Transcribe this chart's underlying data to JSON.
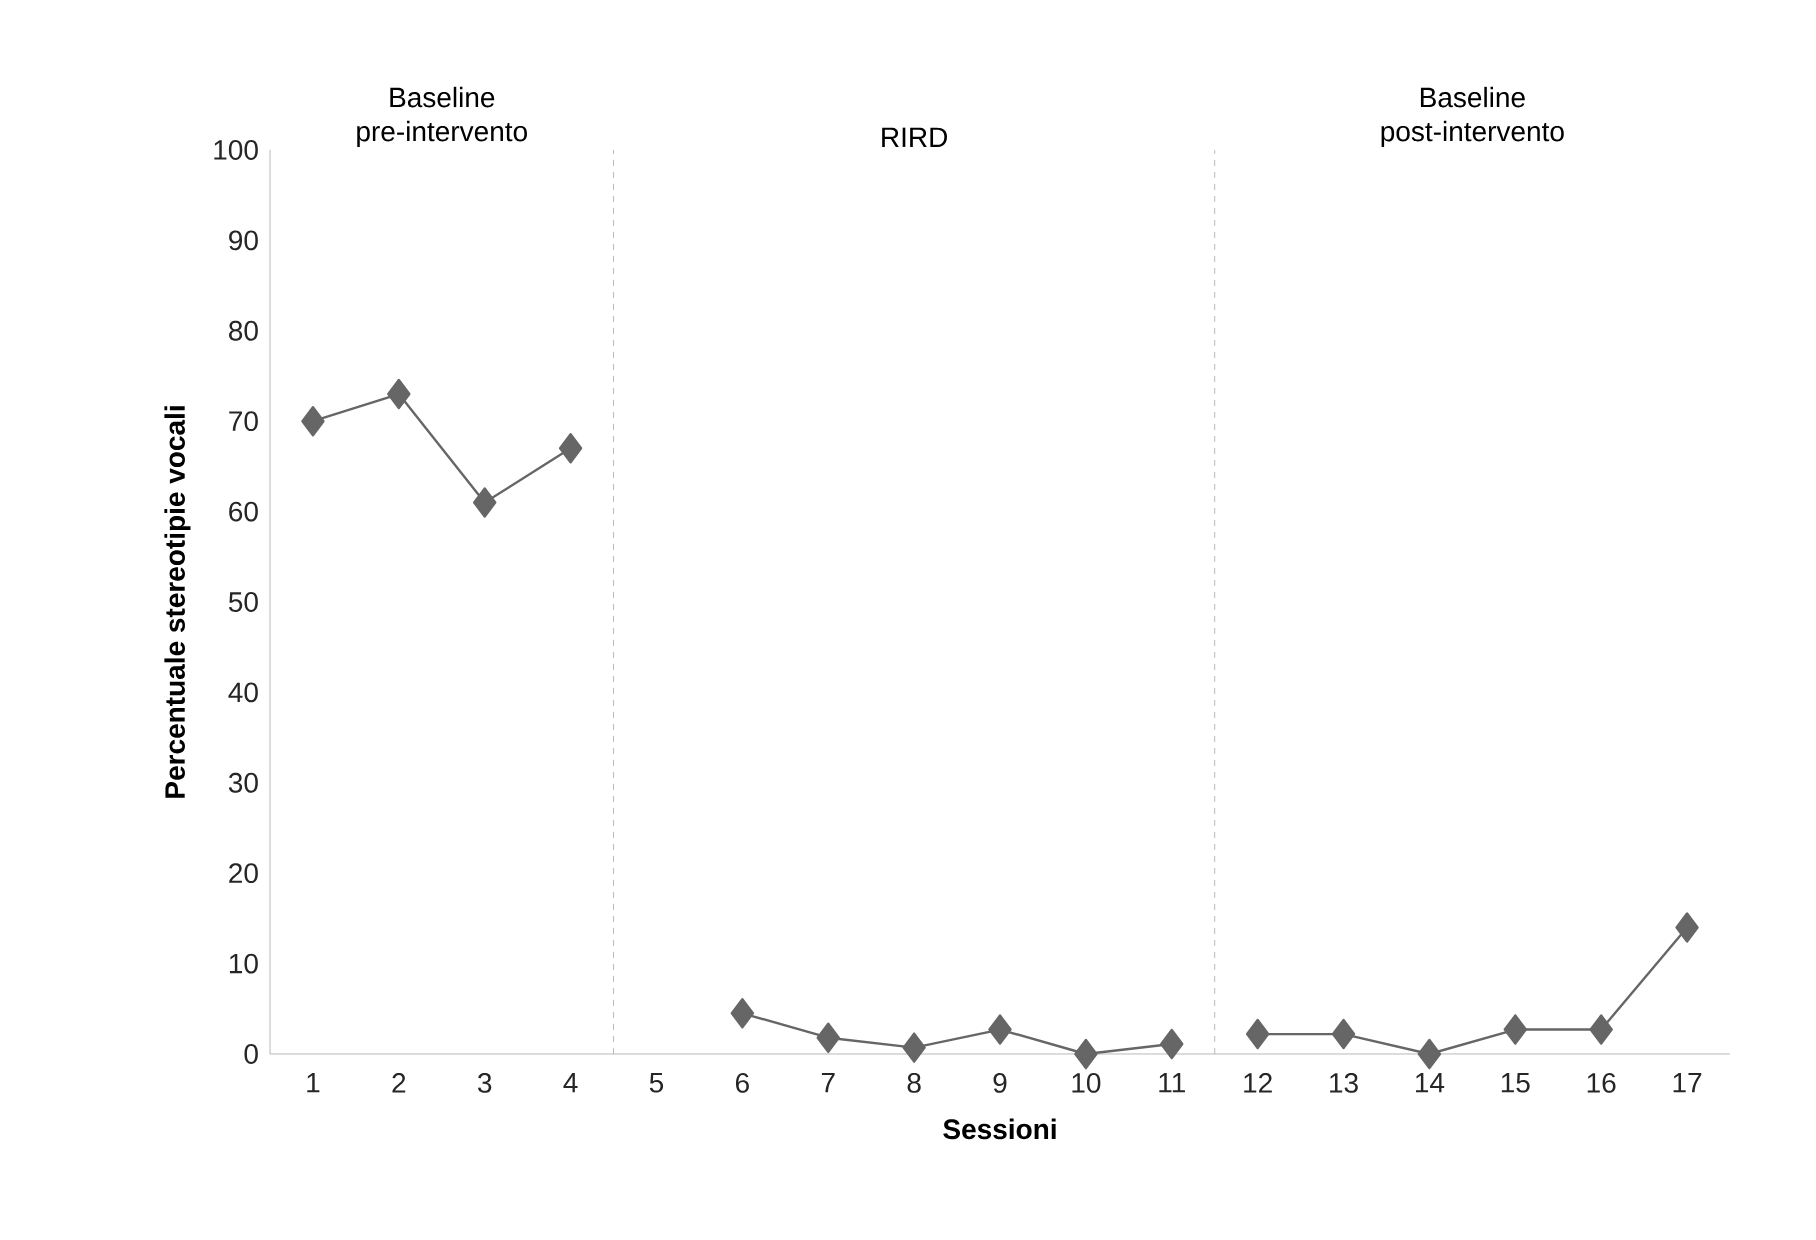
{
  "chart_data": {
    "type": "line",
    "xlabel": "Sessioni",
    "ylabel": "Percentuale stereotipie vocali",
    "series": [
      {
        "color": "#666666",
        "x": [
          1,
          2,
          3,
          4
        ],
        "values": [
          70,
          73,
          61,
          67
        ]
      },
      {
        "color": "#666666",
        "x": [
          6,
          7,
          8,
          9,
          10,
          11
        ],
        "values": [
          4.5,
          1.8,
          0.7,
          2.7,
          0,
          1.1
        ]
      },
      {
        "color": "#666666",
        "x": [
          12,
          13,
          14,
          15,
          16,
          17
        ],
        "values": [
          2.2,
          2.2,
          0,
          2.7,
          2.7,
          14
        ]
      }
    ],
    "xlim": [
      0.5,
      17.5
    ],
    "xticks": [
      1,
      2,
      3,
      4,
      5,
      6,
      7,
      8,
      9,
      10,
      11,
      12,
      13,
      14,
      15,
      16,
      17
    ],
    "ylim": [
      0,
      100
    ],
    "yticks": [
      0,
      10,
      20,
      30,
      40,
      50,
      60,
      70,
      80,
      90,
      100
    ],
    "ref_lines": [
      {
        "axis": "x",
        "value": 4.5,
        "color": "#aaaaaa",
        "line_style": "dashed"
      },
      {
        "axis": "x",
        "value": 11.5,
        "color": "#aaaaaa",
        "line_style": "dashed"
      }
    ],
    "annotations": [
      "Baseline pre-intervento",
      "RIRD",
      "Baseline post-intervento"
    ],
    "marker": "diamond",
    "line_style": "solid",
    "grid": false
  }
}
